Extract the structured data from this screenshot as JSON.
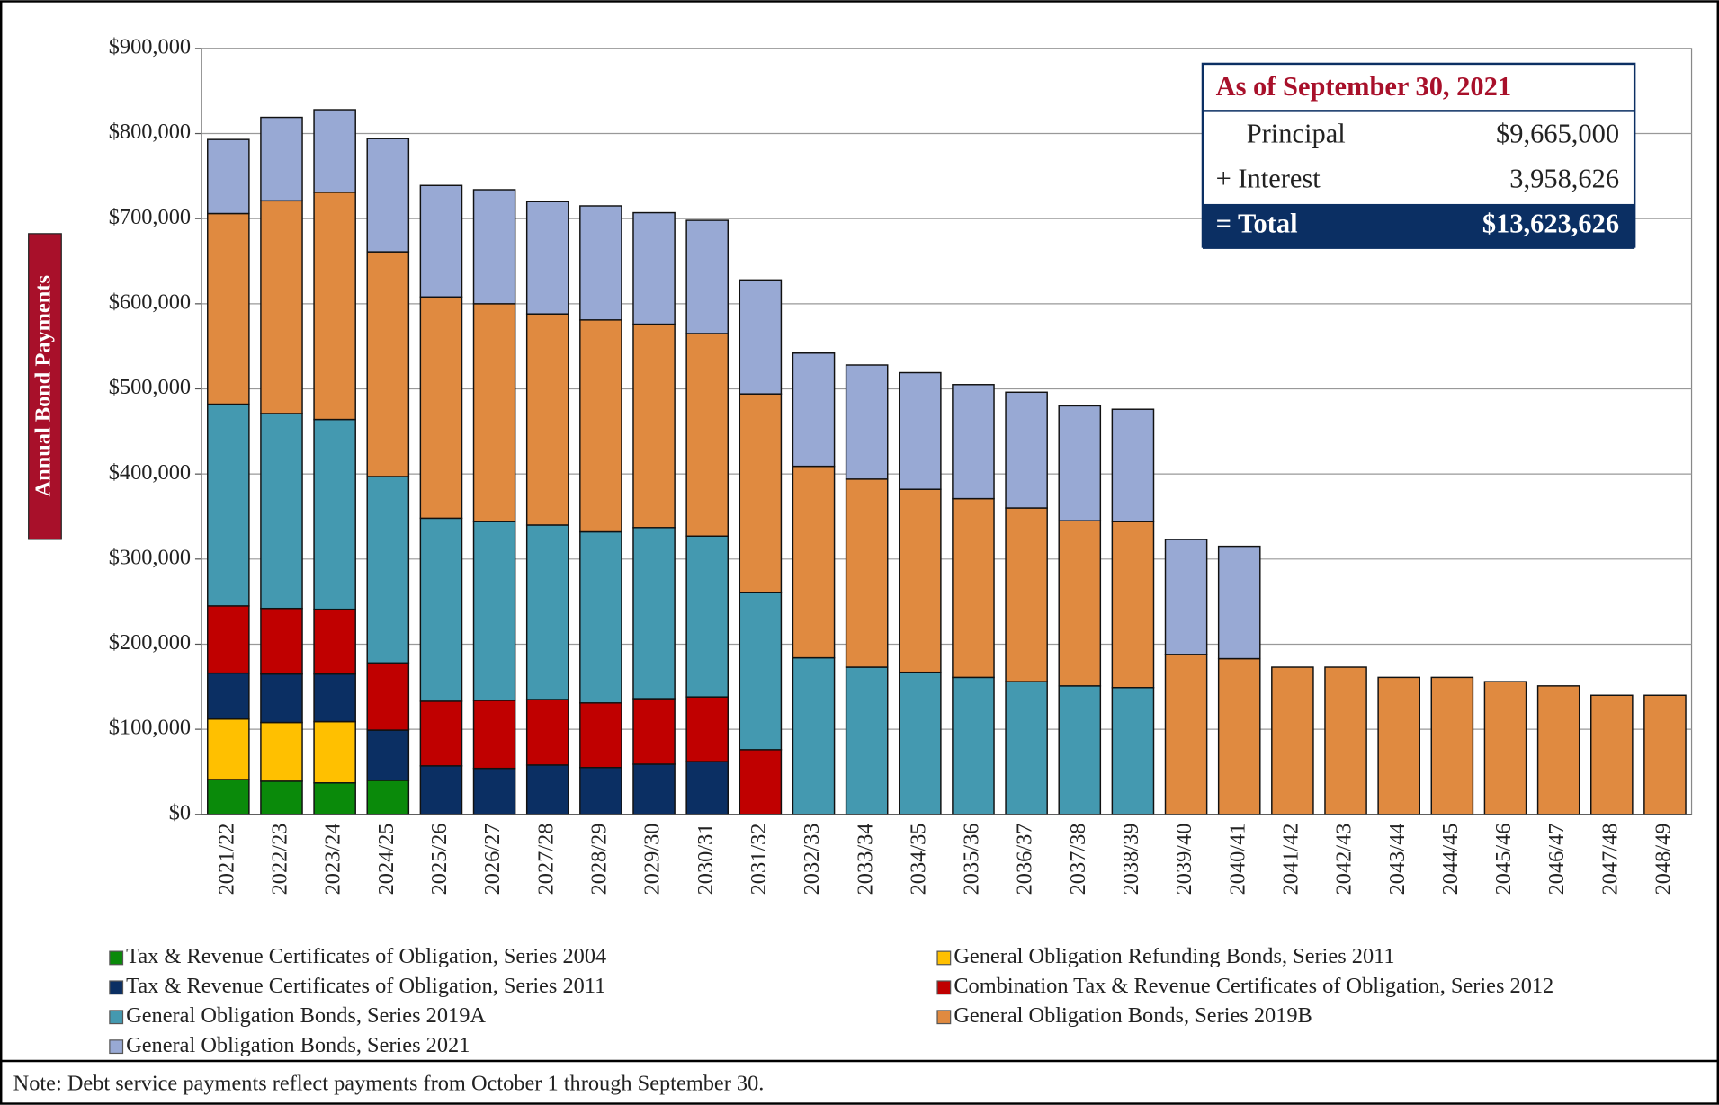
{
  "chart_data": {
    "type": "stacked_bar",
    "ylabel": "Annual Bond Payments",
    "categories": [
      "2021/22",
      "2022/23",
      "2023/24",
      "2024/25",
      "2025/26",
      "2026/27",
      "2027/28",
      "2028/29",
      "2029/30",
      "2030/31",
      "2031/32",
      "2032/33",
      "2033/34",
      "2034/35",
      "2035/36",
      "2036/37",
      "2037/38",
      "2038/39",
      "2039/40",
      "2040/41",
      "2041/42",
      "2042/43",
      "2043/44",
      "2044/45",
      "2045/46",
      "2046/47",
      "2047/48",
      "2048/49"
    ],
    "series": [
      {
        "name": "Tax & Revenue Certificates of Obligation, Series 2004",
        "color": "#0a8a0a",
        "values": [
          41000,
          39000,
          37000,
          40000,
          0,
          0,
          0,
          0,
          0,
          0,
          0,
          0,
          0,
          0,
          0,
          0,
          0,
          0,
          0,
          0,
          0,
          0,
          0,
          0,
          0,
          0,
          0,
          0
        ]
      },
      {
        "name": "General Obligation Refunding Bonds, Series 2011",
        "color": "#ffc000",
        "values": [
          71000,
          69000,
          72000,
          0,
          0,
          0,
          0,
          0,
          0,
          0,
          0,
          0,
          0,
          0,
          0,
          0,
          0,
          0,
          0,
          0,
          0,
          0,
          0,
          0,
          0,
          0,
          0,
          0
        ]
      },
      {
        "name": "Tax & Revenue Certificates of Obligation, Series 2011",
        "color": "#0b2f63",
        "values": [
          54000,
          57000,
          56000,
          59000,
          57000,
          54000,
          58000,
          55000,
          59000,
          62000,
          0,
          0,
          0,
          0,
          0,
          0,
          0,
          0,
          0,
          0,
          0,
          0,
          0,
          0,
          0,
          0,
          0,
          0
        ]
      },
      {
        "name": "Combination Tax & Revenue Certificates of Obligation, Series 2012",
        "color": "#c00000",
        "values": [
          79000,
          77000,
          76000,
          79000,
          76000,
          80000,
          77000,
          76000,
          77000,
          76000,
          76000,
          0,
          0,
          0,
          0,
          0,
          0,
          0,
          0,
          0,
          0,
          0,
          0,
          0,
          0,
          0,
          0,
          0
        ]
      },
      {
        "name": "General Obligation Bonds, Series 2019A",
        "color": "#4499b0",
        "values": [
          237000,
          229000,
          223000,
          219000,
          215000,
          210000,
          205000,
          201000,
          201000,
          189000,
          185000,
          184000,
          173000,
          167000,
          161000,
          156000,
          151000,
          149000,
          0,
          0,
          0,
          0,
          0,
          0,
          0,
          0,
          0,
          0
        ]
      },
      {
        "name": "General Obligation Bonds, Series 2019B",
        "color": "#e08a40",
        "values": [
          224000,
          250000,
          267000,
          264000,
          260000,
          256000,
          248000,
          249000,
          239000,
          238000,
          233000,
          225000,
          221000,
          215000,
          210000,
          204000,
          194000,
          195000,
          188000,
          183000,
          173000,
          173000,
          161000,
          161000,
          156000,
          151000,
          140000,
          140000
        ]
      },
      {
        "name": "General Obligation Bonds, Series 2021",
        "color": "#98a9d4",
        "values": [
          87000,
          98000,
          97000,
          133000,
          131000,
          134000,
          132000,
          134000,
          131000,
          133000,
          134000,
          133000,
          134000,
          137000,
          134000,
          136000,
          135000,
          132000,
          135000,
          132000,
          0,
          0,
          0,
          0,
          0,
          0,
          0,
          0
        ]
      }
    ],
    "ylim": [
      0,
      900000
    ],
    "yticks": [
      {
        "value": 0,
        "label": "$0"
      },
      {
        "value": 100000,
        "label": "$100,000"
      },
      {
        "value": 200000,
        "label": "$200,000"
      },
      {
        "value": 300000,
        "label": "$300,000"
      },
      {
        "value": 400000,
        "label": "$400,000"
      },
      {
        "value": 500000,
        "label": "$500,000"
      },
      {
        "value": 600000,
        "label": "$600,000"
      },
      {
        "value": 700000,
        "label": "$700,000"
      },
      {
        "value": 800000,
        "label": "$800,000"
      },
      {
        "value": 900000,
        "label": "$900,000"
      }
    ],
    "grid": true
  },
  "summary": {
    "title": "As of September 30, 2021",
    "rows": [
      [
        "Principal",
        "$9,665,000"
      ],
      [
        "+ Interest",
        "3,958,626"
      ],
      [
        "= Total",
        "$13,623,626"
      ]
    ]
  },
  "note": "Note: Debt service payments reflect payments from October 1 through September 30."
}
